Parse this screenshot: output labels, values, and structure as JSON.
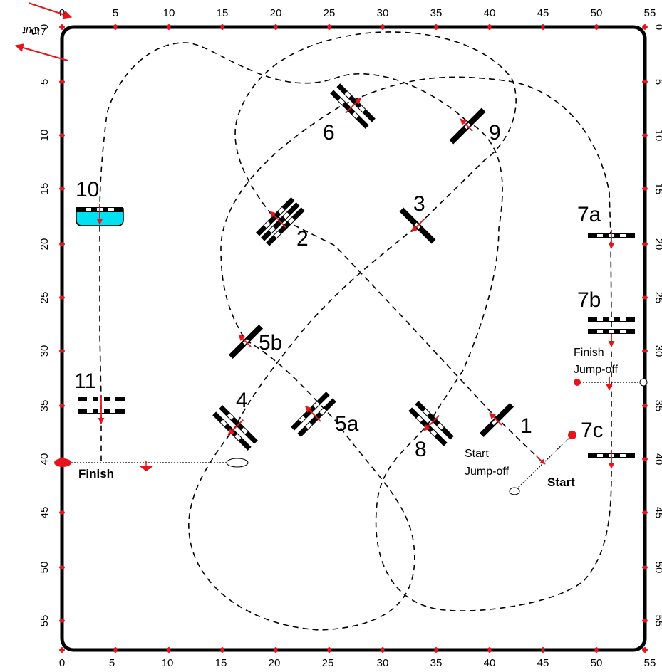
{
  "scale": {
    "top_ticks": [
      "0",
      "5",
      "10",
      "15",
      "20",
      "25",
      "30",
      "35",
      "40",
      "45",
      "50",
      "55"
    ],
    "left_ticks": [
      "0",
      "5",
      "10",
      "15",
      "20",
      "25",
      "30",
      "35",
      "40",
      "45",
      "50",
      "55"
    ],
    "right_ticks": [
      "0",
      "5",
      "10",
      "15",
      "20",
      "25",
      "30",
      "35",
      "40",
      "45",
      "50",
      "55"
    ],
    "bottom_ticks": [
      "0",
      "5",
      "10",
      "15",
      "20",
      "25",
      "30",
      "35",
      "40",
      "45",
      "50",
      "55"
    ]
  },
  "entrance": {
    "in": "In",
    "out": "Out",
    "separator": "/"
  },
  "fences": {
    "f1": "1",
    "f2": "2",
    "f3": "3",
    "f4": "4",
    "f5a": "5a",
    "f5b": "5b",
    "f6": "6",
    "f7a": "7a",
    "f7b": "7b",
    "f7c": "7c",
    "f8": "8",
    "f9": "9",
    "f10": "10",
    "f11": "11"
  },
  "labels": {
    "start": "Start",
    "finish": "Finish",
    "start_jumpoff_1": "Start",
    "start_jumpoff_2": "Jump-off",
    "finish_jumpoff_1": "Finish",
    "finish_jumpoff_2": "Jump-off"
  },
  "colors": {
    "marker": "#e8141b",
    "water": "#00e0f0",
    "line": "#000000"
  }
}
